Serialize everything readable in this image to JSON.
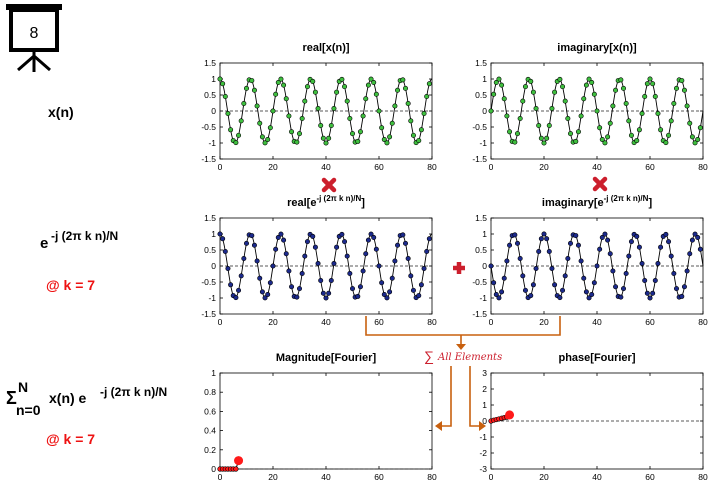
{
  "board": {
    "number": "8"
  },
  "row_labels": {
    "xn": "x(n)",
    "kernel_base": "e",
    "kernel_exp": "-j (2π k n)/N",
    "k_label_1": "@ k = 7",
    "sum_symbol": "Σ",
    "sum_upper": "N",
    "sum_lower": "n=0",
    "sum_body": "x(n) e",
    "sum_exp": "-j (2π k n)/N",
    "k_label_2": "@ k = 7"
  },
  "connector": {
    "sum_symbol": "∑",
    "sum_text": "All Elements"
  },
  "colors": {
    "green_marker": "#3fbf3f",
    "blue_marker": "#1c2a8c",
    "red_marker": "#ff1a1a",
    "red_text": "#ee1111",
    "connector": "#c8600f",
    "mult_sign": "#cc1f2d",
    "plus_sign": "#cc1f2d"
  },
  "chart_data": [
    {
      "id": "real-xn",
      "type": "line",
      "title": "real[x(n)]",
      "title_parts": {
        "base": "real[x(n)]",
        "sup": "",
        "tail": ""
      },
      "xlim": [
        0,
        80
      ],
      "ylim": [
        -1.5,
        1.5
      ],
      "xticks": [
        "0",
        "20",
        "40",
        "60",
        "80"
      ],
      "yticks": [
        "1.5",
        "1",
        "0.5",
        "0",
        "-0.5",
        "-1",
        "-1.5"
      ],
      "n_points": 80,
      "cycles_per_period": 7,
      "period": 80,
      "amplitude": 1,
      "function": "cos",
      "marker_color": "#3fbf3f",
      "zero_line": true
    },
    {
      "id": "imag-xn",
      "type": "line",
      "title": "imaginary[x(n)]",
      "title_parts": {
        "base": "imaginary[x(n)]",
        "sup": "",
        "tail": ""
      },
      "xlim": [
        0,
        80
      ],
      "ylim": [
        -1.5,
        1.5
      ],
      "xticks": [
        "0",
        "20",
        "40",
        "60",
        "80"
      ],
      "yticks": [
        "1.5",
        "1",
        "0.5",
        "0",
        "-0.5",
        "-1",
        "-1.5"
      ],
      "n_points": 80,
      "cycles_per_period": 7,
      "period": 80,
      "amplitude": 1,
      "function": "sin",
      "marker_color": "#3fbf3f",
      "zero_line": true
    },
    {
      "id": "real-kernel",
      "type": "line",
      "title": "real[e-j (2π k n)/N]",
      "title_parts": {
        "base": "real[e",
        "sup": "-j (2π k n)/N",
        "tail": "]"
      },
      "xlim": [
        0,
        80
      ],
      "ylim": [
        -1.5,
        1.5
      ],
      "xticks": [
        "0",
        "20",
        "40",
        "60",
        "80"
      ],
      "yticks": [
        "1.5",
        "1",
        "0.5",
        "0",
        "-0.5",
        "-1",
        "-1.5"
      ],
      "n_points": 80,
      "cycles_per_period": 7,
      "period": 80,
      "amplitude": 1,
      "function": "cos",
      "marker_color": "#1c2a8c",
      "zero_line": true
    },
    {
      "id": "imag-kernel",
      "type": "line",
      "title": "imaginary[e-j (2π k n)/N]",
      "title_parts": {
        "base": "imaginary[e",
        "sup": "-j (2π k n)/N",
        "tail": "]"
      },
      "xlim": [
        0,
        80
      ],
      "ylim": [
        -1.5,
        1.5
      ],
      "xticks": [
        "0",
        "20",
        "40",
        "60",
        "80"
      ],
      "yticks": [
        "1.5",
        "1",
        "0.5",
        "0",
        "-0.5",
        "-1",
        "-1.5"
      ],
      "n_points": 80,
      "cycles_per_period": 7,
      "period": 80,
      "amplitude": 1,
      "function": "-sin",
      "marker_color": "#1c2a8c",
      "zero_line": true
    },
    {
      "id": "magnitude",
      "type": "scatter",
      "title": "Magnitude[Fourier]",
      "title_parts": {
        "base": "Magnitude[Fourier]",
        "sup": "",
        "tail": ""
      },
      "xlim": [
        0,
        80
      ],
      "ylim": [
        0,
        1
      ],
      "xticks": [
        "0",
        "20",
        "40",
        "60",
        "80"
      ],
      "yticks": [
        "1",
        "0.8",
        "0.6",
        "0.4",
        "0.2",
        "0"
      ],
      "x": [
        0,
        1,
        2,
        3,
        4,
        5,
        6,
        7
      ],
      "y": [
        0,
        0,
        0,
        0,
        0,
        0,
        0,
        0.0875
      ],
      "highlight_index": 7,
      "marker_color": "#ff1a1a",
      "zero_line": true
    },
    {
      "id": "phase",
      "type": "scatter",
      "title": "phase[Fourier]",
      "title_parts": {
        "base": "phase[Fourier]",
        "sup": "",
        "tail": ""
      },
      "xlim": [
        0,
        80
      ],
      "ylim": [
        -3,
        3
      ],
      "xticks": [
        "0",
        "20",
        "40",
        "60",
        "80"
      ],
      "yticks": [
        "3",
        "2",
        "1",
        "0",
        "-1",
        "-2",
        "-3"
      ],
      "x": [
        0,
        1,
        2,
        3,
        4,
        5,
        6,
        7
      ],
      "y": [
        0,
        0.05,
        0.09,
        0.13,
        0.17,
        0.21,
        0.24,
        0.38
      ],
      "highlight_index": 7,
      "marker_color": "#ff1a1a",
      "zero_line": true
    }
  ]
}
